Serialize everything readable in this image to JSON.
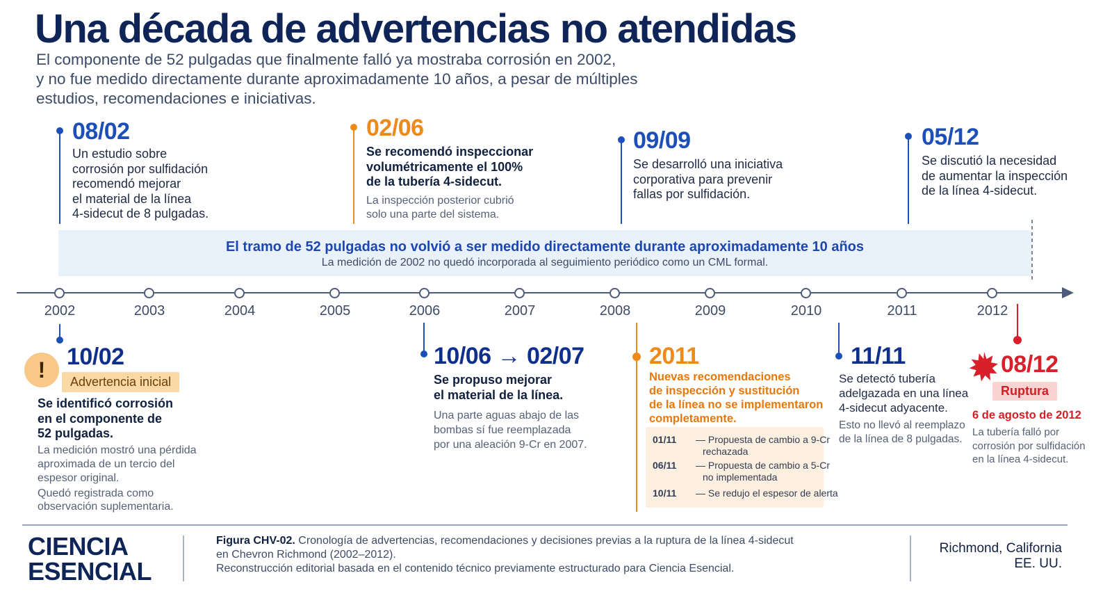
{
  "header": {
    "title": "Una década de advertencias no atendidas",
    "subtitle_lines": [
      "El componente de 52 pulgadas que finalmente falló ya mostraba corrosión en 2002,",
      "y no fue medido directamente durante aproximadamente 10 años, a pesar de múltiples",
      "estudios, recomendaciones e iniciativas."
    ]
  },
  "timeline": {
    "years": [
      "2002",
      "2003",
      "2004",
      "2005",
      "2006",
      "2007",
      "2008",
      "2009",
      "2010",
      "2011",
      "2012"
    ],
    "band_title": "El tramo de 52 pulgadas no volvió a ser medido directamente durante aproximadamente 10 años",
    "band_sub": "La medición de 2002 no quedó incorporada al seguimiento periódico como un CML formal."
  },
  "events_top": [
    {
      "date": "08/02",
      "color": "#1c4fb8",
      "text": [
        "Un estudio sobre",
        "corrosión por sulfidación",
        "recomendó mejorar",
        "el material de la línea",
        "4-sidecut de 8 pulgadas."
      ]
    },
    {
      "date": "02/06",
      "color": "#ee8a1a",
      "bold": [
        "Se recomendó inspeccionar",
        "volumétricamente el 100%",
        "de la tubería 4-sidecut."
      ],
      "sub": [
        "La inspección posterior cubrió",
        "solo una parte del sistema."
      ]
    },
    {
      "date": "09/09",
      "color": "#1c4fb8",
      "text": [
        "Se desarrolló una iniciativa",
        "corporativa para prevenir",
        "fallas por sulfidación."
      ]
    },
    {
      "date": "05/12",
      "color": "#1c4fb8",
      "text": [
        "Se discutió la necesidad",
        "de aumentar la inspección",
        "de la línea 4-sidecut."
      ]
    }
  ],
  "events_bottom": [
    {
      "date": "10/02",
      "icon": "warning-icon",
      "icon_glyph": "!",
      "badge": "Advertencia inicial",
      "bold": [
        "Se identificó corrosión",
        "en el componente de",
        "52 pulgadas."
      ],
      "sub": [
        "La medición mostró una pérdida",
        "aproximada de un tercio del",
        "espesor original."
      ],
      "sub2": [
        "Quedó registrada como",
        "observación suplementaria."
      ]
    },
    {
      "date": "10/06 → 02/07",
      "bold": [
        "Se propuso mejorar",
        "el material de la línea."
      ],
      "sub": [
        "Una parte aguas abajo de las",
        "bombas sí fue reemplazada",
        "por una aleación 9-Cr en 2007."
      ]
    },
    {
      "date": "2011",
      "color": "#ee8a1a",
      "orange_text": [
        "Nuevas recomendaciones",
        "de inspección y sustitución",
        "de la línea no se implementaron",
        "completamente."
      ],
      "proposals": [
        {
          "date": "01/11",
          "text": [
            "— Propuesta de cambio a 9-Cr",
            "rechazada"
          ]
        },
        {
          "date": "06/11",
          "text": [
            "— Propuesta de cambio a 5-Cr",
            "no implementada"
          ]
        },
        {
          "date": "10/11",
          "text": [
            "— Se redujo el espesor de alerta"
          ]
        }
      ]
    },
    {
      "date": "11/11",
      "text": [
        "Se detectó tubería",
        "adelgazada en una línea",
        "4-sidecut adyacente."
      ],
      "sub": [
        "Esto no llevó al reemplazo",
        "de la línea de 8 pulgadas."
      ]
    },
    {
      "date": "08/12",
      "color": "#d8202a",
      "icon": "burst-icon",
      "badge": "Ruptura",
      "red_date": "6 de agosto de 2012",
      "sub": [
        "La tubería falló por",
        "corrosión por sulfidación",
        "en la línea 4-sidecut."
      ]
    }
  ],
  "footer": {
    "brand": [
      "CIENCIA",
      "ESENCIAL"
    ],
    "figure_label": "Figura CHV-02.",
    "caption_line1": "Cronología de advertencias, recomendaciones y decisiones previas a la ruptura de la línea 4-sidecut",
    "caption_line2": "en Chevron Richmond (2002–2012).",
    "caption_line3": "Reconstrucción editorial basada en el contenido técnico previamente estructurado para Ciencia Esencial.",
    "location": [
      "Richmond, California",
      "EE. UU."
    ]
  },
  "colors": {
    "navy": "#0f2557",
    "blue": "#1c4fb8",
    "orange": "#ee8a1a",
    "red": "#d8202a",
    "band": "#e9f2fb"
  }
}
